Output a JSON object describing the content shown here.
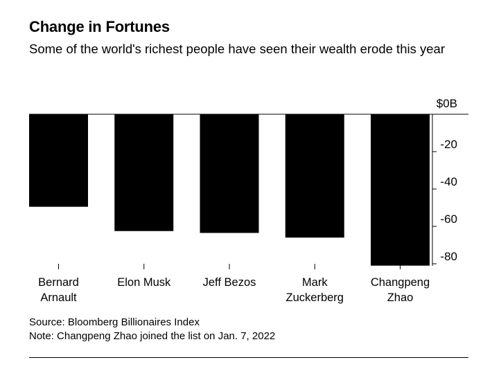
{
  "title": "Change in Fortunes",
  "subtitle": "Some of the world's richest people have seen their wealth erode this year",
  "chart_data": {
    "type": "bar",
    "title": "Change in Fortunes",
    "subtitle": "Some of the world's richest people have seen their wealth erode this year",
    "categories": [
      [
        "Bernard",
        "Arnault"
      ],
      [
        "Elon Musk"
      ],
      [
        "Jeff Bezos"
      ],
      [
        "Mark",
        "Zuckerberg"
      ],
      [
        "Changpeng",
        "Zhao"
      ]
    ],
    "values": [
      -49.5,
      -62.5,
      -63.5,
      -66,
      -81
    ],
    "unit": "billion USD",
    "ylim": [
      -80,
      0
    ],
    "y_ticks": [
      {
        "value": 0,
        "label": "$0B"
      },
      {
        "value": -20,
        "label": "-20"
      },
      {
        "value": -40,
        "label": "-40"
      },
      {
        "value": -60,
        "label": "-60"
      },
      {
        "value": -80,
        "label": "-80"
      }
    ],
    "y_axis_position": "right",
    "grid": false,
    "bar_color": "#000000"
  },
  "footer": {
    "source": "Source: Bloomberg Billionaires Index",
    "note": "Note: Changpeng Zhao joined the list on Jan. 7, 2022"
  }
}
